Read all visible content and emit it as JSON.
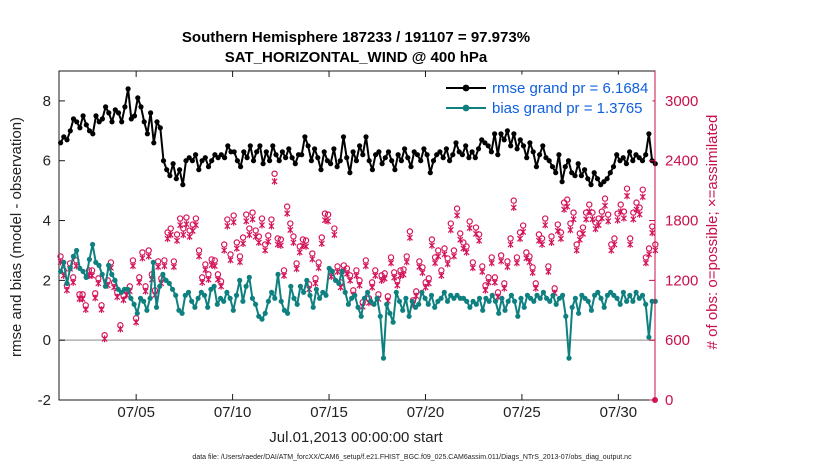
{
  "colors": {
    "rmse": "#000000",
    "bias": "#0f8080",
    "obs": "#d4145a",
    "right_axis": "#c8104a",
    "legend_text": "#1060e0",
    "zero_line": "#b0b0b0"
  },
  "chart_data": {
    "type": "line",
    "title_line1": "Southern Hemisphere 187233 / 191107 = 97.973%",
    "title_line2": "SAT_HORIZONTAL_WIND @ 400 hPa",
    "xlabel": "Jul.01,2013 00:00:00 start",
    "ylabel_left": "rmse and bias (model - observation)",
    "ylabel_right": "# of obs: o=possible; ×=assimilated",
    "footnote": "data file: /Users/raeder/DAI/ATM_forcXX/CAM6_setup/f.e21.FHIST_BGC.f09_025.CAM6assim.011/Diags_NTrS_2013-07/obs_diag_output.nc",
    "xlim": [
      1,
      31.9
    ],
    "ylim_left": [
      -2,
      9
    ],
    "ylim_right": [
      0,
      3300
    ],
    "left_ticks": [
      "-2",
      "0",
      "2",
      "4",
      "6",
      "8"
    ],
    "right_ticks": [
      "0",
      "600",
      "1200",
      "1800",
      "2400",
      "3000"
    ],
    "x_tick_positions": [
      5,
      10,
      15,
      20,
      25,
      30
    ],
    "x_tick_labels": [
      "07/05",
      "07/10",
      "07/15",
      "07/20",
      "07/25",
      "07/30"
    ],
    "legend": [
      {
        "name": "rmse grand pr = 6.1684"
      },
      {
        "name": "bias grand pr = 1.3765"
      }
    ],
    "series": [
      {
        "name": "rmse",
        "values": [
          6.6,
          6.8,
          6.7,
          7.0,
          7.4,
          7.3,
          7.1,
          7.5,
          7.2,
          7.0,
          6.9,
          7.5,
          7.3,
          7.4,
          7.8,
          7.6,
          7.3,
          7.7,
          7.6,
          7.3,
          7.8,
          8.4,
          7.4,
          7.5,
          8.1,
          7.8,
          7.3,
          6.9,
          7.6,
          6.6,
          7.3,
          7.1,
          6.0,
          5.7,
          5.5,
          5.9,
          5.4,
          5.7,
          5.2,
          6.0,
          6.1,
          6.0,
          6.2,
          5.7,
          6.0,
          6.1,
          5.8,
          6.0,
          6.2,
          6.1,
          6.2,
          6.1,
          6.5,
          6.3,
          6.3,
          6.0,
          5.8,
          6.3,
          6.1,
          6.5,
          6.0,
          6.3,
          6.5,
          5.9,
          6.3,
          6.0,
          6.5,
          6.2,
          6.0,
          6.3,
          6.1,
          6.4,
          6.1,
          5.9,
          6.2,
          6.2,
          6.8,
          6.5,
          6.0,
          6.4,
          6.1,
          5.7,
          6.3,
          6.0,
          5.9,
          6.4,
          5.8,
          6.0,
          6.8,
          6.1,
          5.6,
          6.3,
          6.0,
          6.5,
          6.2,
          6.8,
          6.0,
          5.7,
          6.2,
          6.3,
          5.9,
          6.1,
          6.3,
          6.0,
          5.7,
          6.2,
          6.0,
          6.4,
          6.1,
          5.8,
          6.3,
          6.2,
          6.0,
          6.4,
          6.2,
          5.6,
          6.0,
          6.2,
          6.3,
          6.1,
          6.4,
          6.0,
          6.2,
          6.6,
          6.3,
          6.2,
          6.5,
          6.1,
          6.3,
          6.1,
          6.4,
          6.7,
          6.6,
          6.5,
          6.3,
          6.9,
          6.2,
          6.9,
          6.7,
          7.0,
          6.5,
          6.9,
          6.4,
          6.7,
          6.5,
          6.1,
          6.6,
          6.3,
          5.8,
          6.2,
          6.5,
          6.1,
          6.0,
          5.8,
          5.6,
          6.2,
          5.3,
          5.8,
          6.0,
          5.6,
          5.5,
          5.9,
          5.5,
          5.7,
          5.4,
          5.2,
          5.6,
          5.4,
          5.2,
          5.3,
          5.4,
          5.6,
          5.8,
          6.2,
          6.0,
          6.1,
          5.9,
          6.3,
          6.0,
          6.2,
          6.1,
          6.0,
          6.2,
          6.9,
          6.0,
          5.9
        ]
      },
      {
        "name": "bias",
        "values": [
          2.3,
          2.6,
          1.9,
          2.4,
          2.8,
          3.0,
          2.4,
          2.3,
          2.1,
          2.7,
          3.2,
          2.6,
          2.5,
          2.2,
          1.8,
          2.5,
          2.2,
          2.0,
          1.7,
          1.6,
          1.7,
          1.7,
          1.4,
          1.2,
          0.9,
          1.4,
          1.3,
          1.0,
          1.4,
          2.6,
          1.1,
          1.8,
          2.2,
          2.0,
          1.9,
          1.7,
          1.5,
          1.0,
          0.9,
          1.5,
          1.6,
          1.3,
          1.1,
          1.4,
          1.6,
          1.5,
          1.1,
          1.7,
          1.8,
          1.2,
          1.4,
          1.3,
          1.6,
          1.4,
          1.0,
          1.5,
          2.0,
          1.3,
          1.8,
          2.1,
          1.4,
          1.2,
          0.8,
          0.7,
          0.9,
          1.3,
          1.6,
          1.4,
          2.2,
          1.3,
          1.0,
          0.9,
          1.8,
          1.4,
          1.2,
          1.8,
          1.6,
          2.0,
          1.5,
          1.1,
          1.7,
          1.4,
          1.6,
          1.5,
          2.4,
          2.3,
          2.0,
          1.9,
          2.3,
          1.6,
          1.2,
          1.4,
          1.5,
          1.1,
          0.8,
          1.4,
          1.6,
          1.3,
          1.2,
          1.4,
          0.8,
          -0.6,
          1.2,
          0.9,
          0.6,
          1.6,
          1.3,
          1.0,
          1.4,
          0.8,
          1.3,
          1.1,
          1.2,
          1.6,
          1.4,
          1.2,
          1.5,
          1.1,
          1.3,
          1.4,
          1.6,
          1.3,
          1.5,
          1.4,
          1.5,
          1.4,
          1.4,
          1.3,
          1.1,
          1.3,
          1.2,
          1.4,
          1.0,
          1.4,
          1.3,
          1.5,
          1.3,
          0.9,
          1.4,
          1.0,
          1.3,
          1.5,
          1.3,
          0.8,
          1.4,
          1.1,
          1.5,
          1.4,
          1.3,
          1.5,
          1.4,
          1.6,
          1.4,
          1.3,
          1.5,
          1.2,
          1.4,
          1.5,
          0.8,
          -0.6,
          1.1,
          1.4,
          0.9,
          1.5,
          1.4,
          1.3,
          1.0,
          1.5,
          1.6,
          1.4,
          1.1,
          1.5,
          1.6,
          1.5,
          1.4,
          1.2,
          1.6,
          1.3,
          1.5,
          1.3,
          1.6,
          1.4,
          1.5,
          1.2,
          0.1,
          1.3,
          1.3
        ]
      }
    ],
    "obs_possible": [
      1440,
      1300,
      1150,
      1370,
      1230,
      1400,
      1060,
      1060,
      950,
      1300,
      1300,
      1070,
      1220,
      950,
      650,
      1200,
      1380,
      1180,
      1080,
      750,
      1050,
      1100,
      1140,
      1400,
      820,
      1230,
      1480,
      1140,
      1500,
      1260,
      1100,
      1390,
      1220,
      1400,
      1680,
      1720,
      1390,
      1660,
      1820,
      1720,
      1830,
      1700,
      1760,
      1820,
      1500,
      1230,
      1360,
      1260,
      1410,
      1400,
      1260,
      1190,
      1560,
      1810,
      1460,
      1850,
      1580,
      1440,
      1630,
      1860,
      1720,
      1880,
      1700,
      1640,
      1820,
      1560,
      1650,
      1810,
      2270,
      1620,
      1610,
      1300,
      1940,
      1770,
      1640,
      1370,
      1540,
      1610,
      1600,
      1160,
      1470,
      1220,
      1380,
      1630,
      1870,
      1860,
      1290,
      1720,
      1340,
      1180,
      1350,
      1320,
      1250,
      1100,
      1300,
      1200,
      980,
      1400,
      1020,
      1180,
      1300,
      1060,
      1250,
      1270,
      1040,
      1430,
      1280,
      1200,
      1300,
      1310,
      1440,
      1690,
      1000,
      1090,
      1390,
      1330,
      1180,
      1220,
      1610,
      1430,
      1500,
      1300,
      1520,
      1420,
      1770,
      1500,
      1920,
      1670,
      1580,
      1540,
      1790,
      1380,
      1730,
      1660,
      1340,
      1150,
      1230,
      1430,
      1230,
      1080,
      1450,
      1170,
      1390,
      1620,
      2000,
      1430,
      1680,
      1750,
      1480,
      1440,
      1330,
      1170,
      1660,
      1620,
      1820,
      1340,
      1640,
      1120,
      1760,
      1680,
      1980,
      2010,
      1770,
      1880,
      1560,
      1670,
      1730,
      1880,
      1960,
      1880,
      1780,
      1820,
      1890,
      2020,
      1860,
      1560,
      1620,
      1870,
      1960,
      1890,
      2120,
      1620,
      1880,
      1980,
      1930,
      2110,
      1430,
      1520,
      1740,
      1560
    ]
  }
}
